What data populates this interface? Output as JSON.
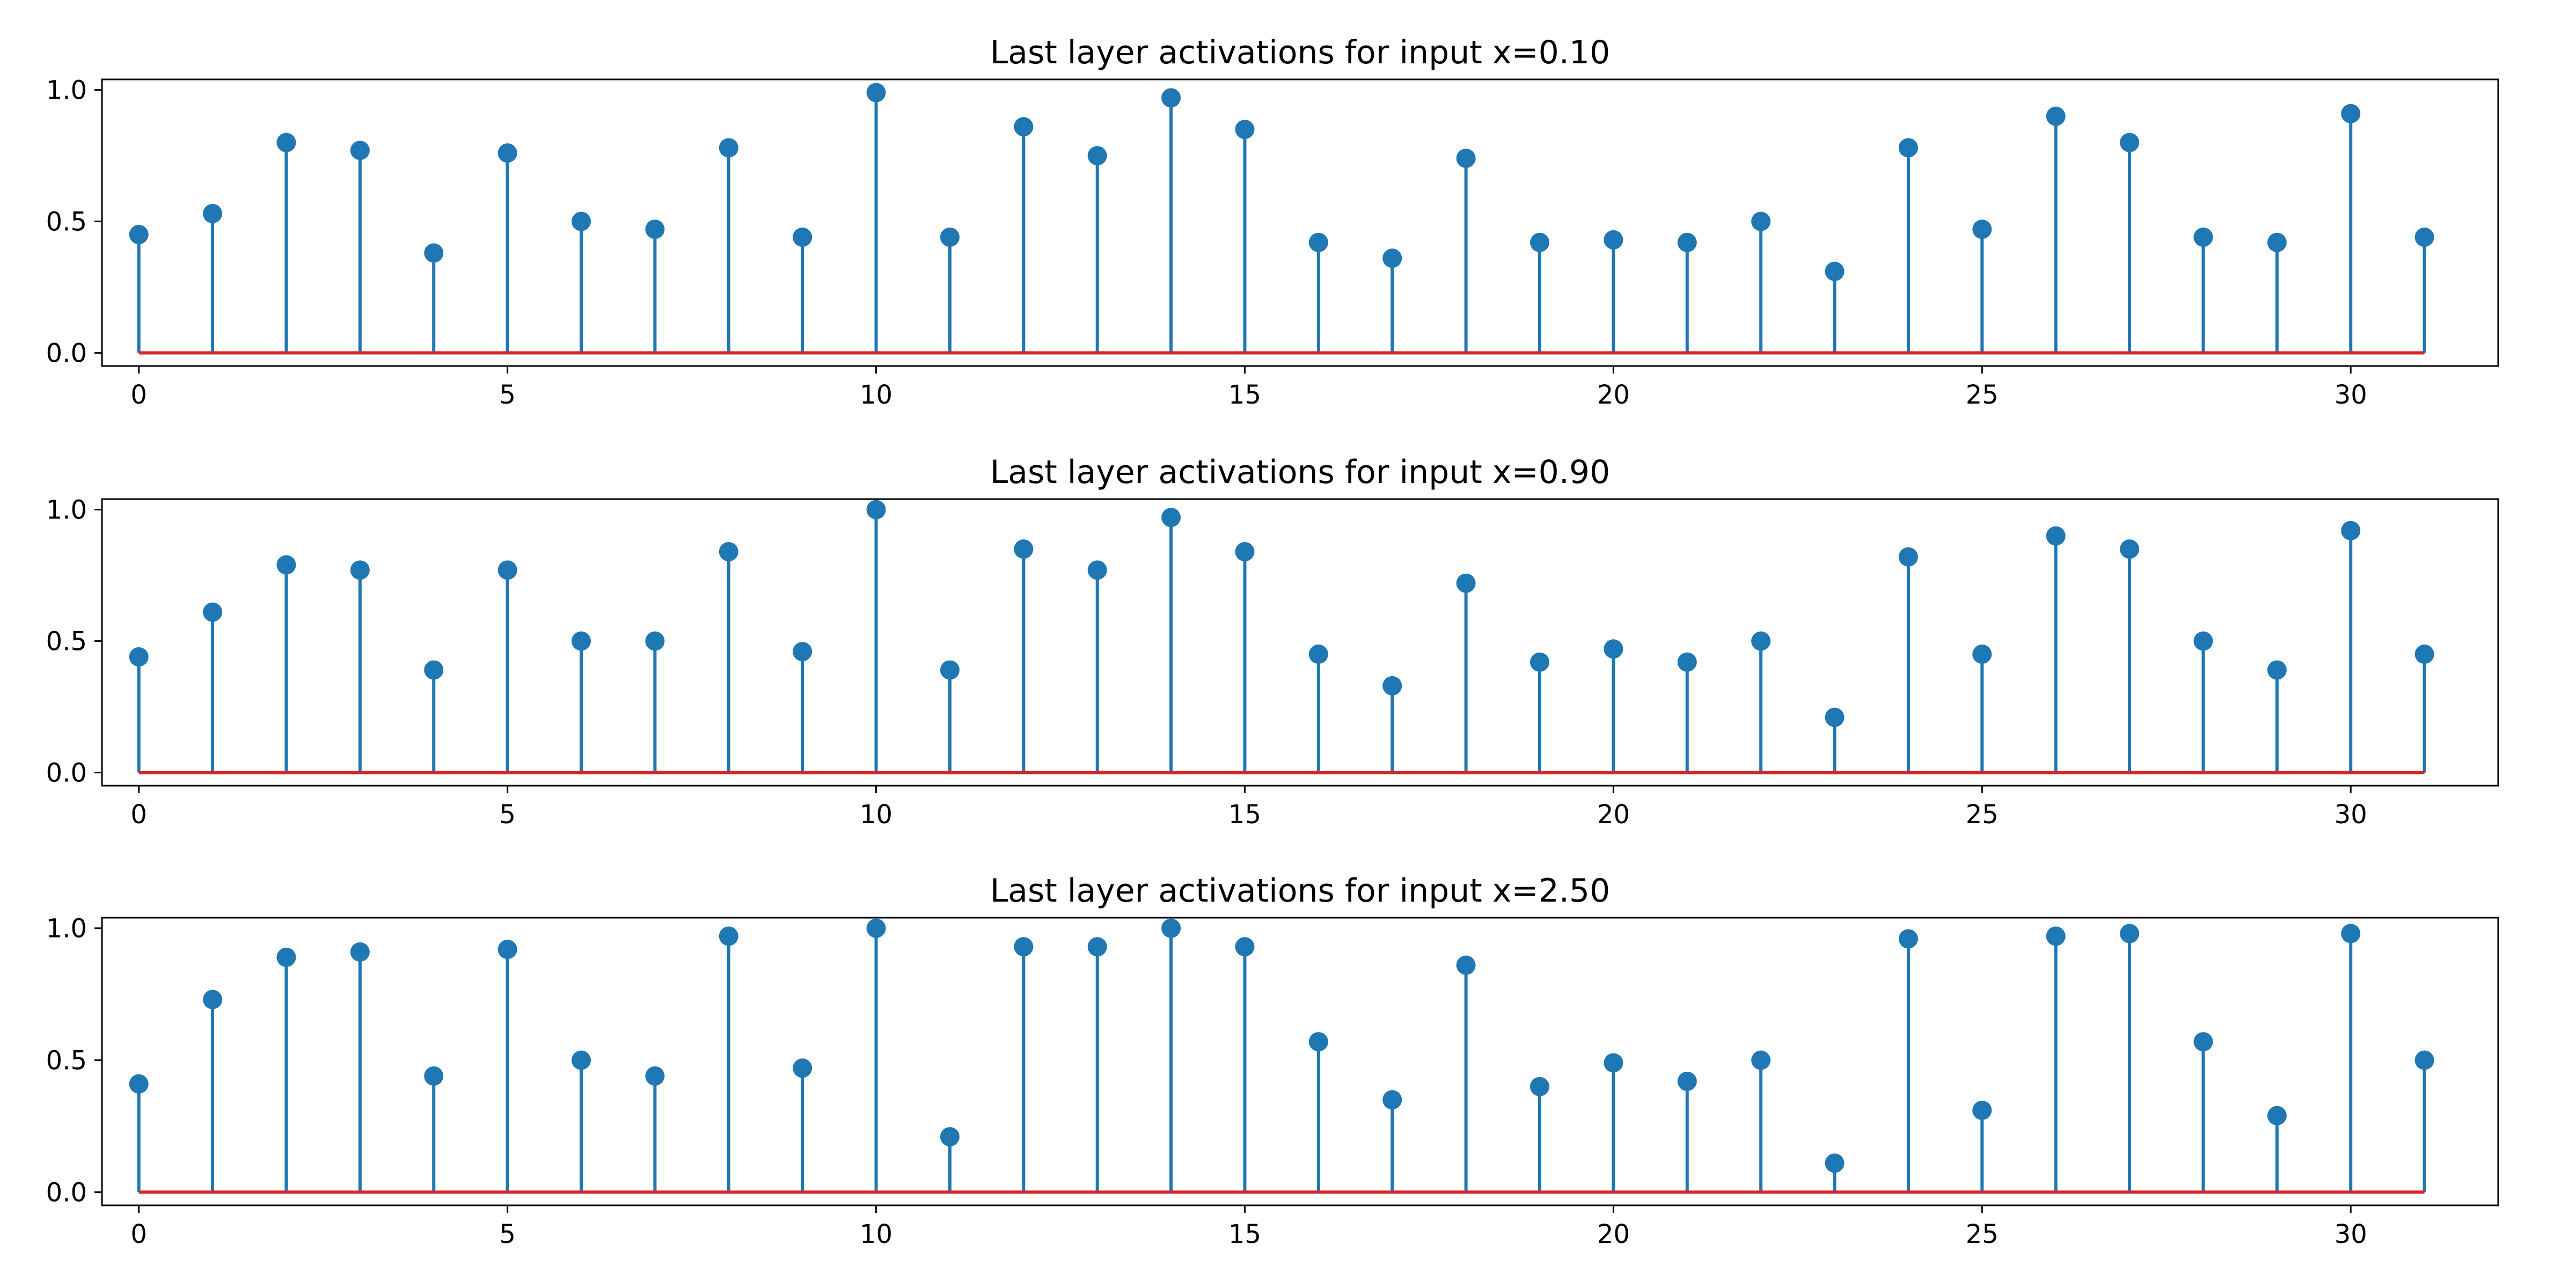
{
  "chart_data": [
    {
      "type": "stem",
      "title": "Last layer activations for input x=0.10",
      "x": [
        0,
        1,
        2,
        3,
        4,
        5,
        6,
        7,
        8,
        9,
        10,
        11,
        12,
        13,
        14,
        15,
        16,
        17,
        18,
        19,
        20,
        21,
        22,
        23,
        24,
        25,
        26,
        27,
        28,
        29,
        30,
        31
      ],
      "values": [
        0.45,
        0.53,
        0.8,
        0.77,
        0.38,
        0.76,
        0.5,
        0.47,
        0.78,
        0.44,
        0.99,
        0.44,
        0.86,
        0.75,
        0.97,
        0.85,
        0.42,
        0.36,
        0.74,
        0.42,
        0.43,
        0.42,
        0.5,
        0.31,
        0.78,
        0.47,
        0.9,
        0.8,
        0.44,
        0.42,
        0.91,
        0.44
      ],
      "xticks": [
        0,
        5,
        10,
        15,
        20,
        25,
        30
      ],
      "yticks": [
        0.0,
        0.5,
        1.0
      ],
      "ytick_labels": [
        "0.0",
        "0.5",
        "1.0"
      ],
      "xlim": [
        -0.5,
        32.0
      ],
      "ylim": [
        -0.05,
        1.04
      ],
      "baseline": 0.0
    },
    {
      "type": "stem",
      "title": "Last layer activations for input x=0.90",
      "x": [
        0,
        1,
        2,
        3,
        4,
        5,
        6,
        7,
        8,
        9,
        10,
        11,
        12,
        13,
        14,
        15,
        16,
        17,
        18,
        19,
        20,
        21,
        22,
        23,
        24,
        25,
        26,
        27,
        28,
        29,
        30,
        31
      ],
      "values": [
        0.44,
        0.61,
        0.79,
        0.77,
        0.39,
        0.77,
        0.5,
        0.5,
        0.84,
        0.46,
        1.0,
        0.39,
        0.85,
        0.77,
        0.97,
        0.84,
        0.45,
        0.33,
        0.72,
        0.42,
        0.47,
        0.42,
        0.5,
        0.21,
        0.82,
        0.45,
        0.9,
        0.85,
        0.5,
        0.39,
        0.92,
        0.45
      ],
      "xticks": [
        0,
        5,
        10,
        15,
        20,
        25,
        30
      ],
      "yticks": [
        0.0,
        0.5,
        1.0
      ],
      "ytick_labels": [
        "0.0",
        "0.5",
        "1.0"
      ],
      "xlim": [
        -0.5,
        32.0
      ],
      "ylim": [
        -0.05,
        1.04
      ],
      "baseline": 0.0
    },
    {
      "type": "stem",
      "title": "Last layer activations for input x=2.50",
      "x": [
        0,
        1,
        2,
        3,
        4,
        5,
        6,
        7,
        8,
        9,
        10,
        11,
        12,
        13,
        14,
        15,
        16,
        17,
        18,
        19,
        20,
        21,
        22,
        23,
        24,
        25,
        26,
        27,
        28,
        29,
        30,
        31
      ],
      "values": [
        0.41,
        0.73,
        0.89,
        0.91,
        0.44,
        0.92,
        0.5,
        0.44,
        0.97,
        0.47,
        1.0,
        0.21,
        0.93,
        0.93,
        1.0,
        0.93,
        0.57,
        0.35,
        0.86,
        0.4,
        0.49,
        0.42,
        0.5,
        0.11,
        0.96,
        0.31,
        0.97,
        0.98,
        0.57,
        0.29,
        0.98,
        0.5
      ],
      "xticks": [
        0,
        5,
        10,
        15,
        20,
        25,
        30
      ],
      "yticks": [
        0.0,
        0.5,
        1.0
      ],
      "ytick_labels": [
        "0.0",
        "0.5",
        "1.0"
      ],
      "xlim": [
        -0.5,
        32.0
      ],
      "ylim": [
        -0.05,
        1.04
      ],
      "baseline": 0.0
    }
  ],
  "colors": {
    "stem": "#1f77b4",
    "marker": "#1f77b4",
    "baseline": "#d62728",
    "axes": "#000000",
    "background": "#ffffff"
  }
}
